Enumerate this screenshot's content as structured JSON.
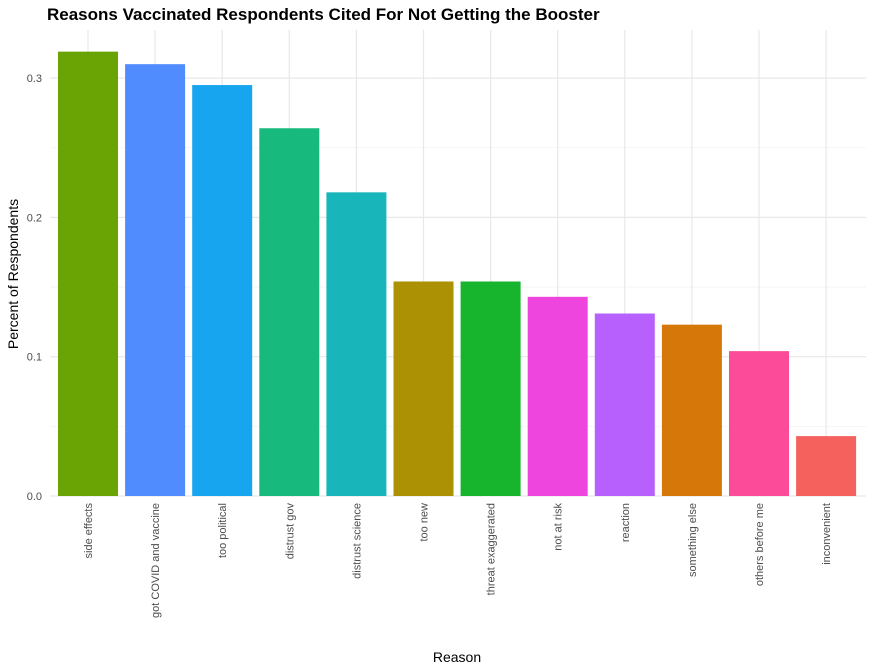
{
  "chart_data": {
    "type": "bar",
    "title": "Reasons Vaccinated Respondents Cited For Not Getting the Booster",
    "xlabel": "Reason",
    "ylabel": "Percent of Respondents",
    "ylim": [
      0,
      0.333
    ],
    "yticks": [
      "0.0",
      "0.1",
      "0.2",
      "0.3"
    ],
    "grid": true,
    "legend": "none",
    "categories": [
      "side effects",
      "got COVID and vaccine",
      "too political",
      "distrust gov",
      "distrust science",
      "too new",
      "threat exaggerated",
      "not at risk",
      "reaction",
      "something else",
      "others before me",
      "inconvenient"
    ],
    "values": [
      0.319,
      0.31,
      0.295,
      0.264,
      0.218,
      0.154,
      0.154,
      0.143,
      0.131,
      0.123,
      0.104,
      0.043
    ],
    "colors": [
      "#6AA304",
      "#518CFF",
      "#16A5EE",
      "#17B97D",
      "#18B5BA",
      "#AC9104",
      "#17B52E",
      "#EF45DF",
      "#B760FE",
      "#D57809",
      "#FB4B99",
      "#F5625E"
    ]
  }
}
